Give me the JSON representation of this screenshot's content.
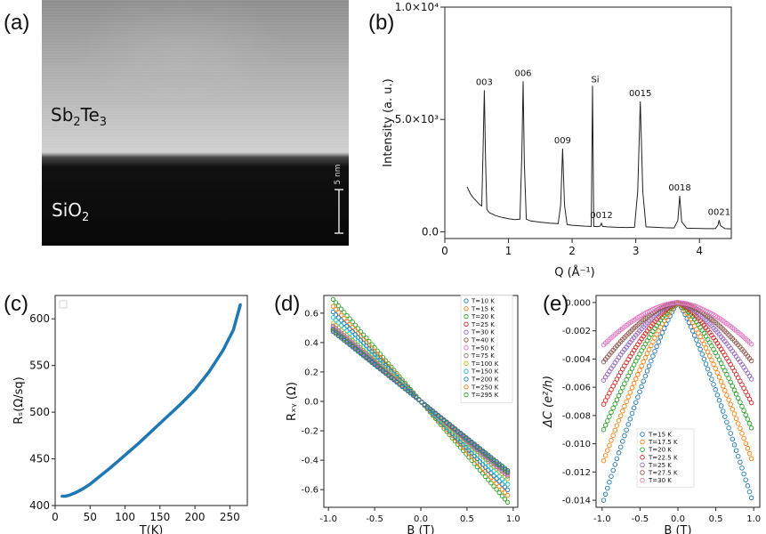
{
  "panels": {
    "a": {
      "label": "(a)",
      "layer_top": "Sb",
      "layer_top_sub1": "2",
      "layer_top_mid": "Te",
      "layer_top_sub2": "3",
      "layer_bottom": "SiO",
      "layer_bottom_sub": "2",
      "scale_bar": "5 nm"
    },
    "b": {
      "label": "(b)"
    },
    "c": {
      "label": "(c)"
    },
    "d": {
      "label": "(d)"
    },
    "e": {
      "label": "(e)"
    }
  },
  "chart_data": [
    {
      "id": "b",
      "type": "line",
      "title": "",
      "ylabel": "Intensity (a. u.)",
      "xlabel": "Q (Å⁻¹)",
      "xlim": [
        0,
        4.5
      ],
      "ylim": [
        -300,
        10000
      ],
      "xticks": [
        "0",
        "1",
        "2",
        "3",
        "4"
      ],
      "yticks": [
        "0.0",
        "5.0×10³",
        "1.0×10⁴"
      ],
      "peaks": [
        {
          "label": "003",
          "x": 0.62,
          "y": 6300
        },
        {
          "label": "006",
          "x": 1.23,
          "y": 6700
        },
        {
          "label": "009",
          "x": 1.85,
          "y": 3700
        },
        {
          "label": "0012",
          "x": 2.46,
          "y": 380
        },
        {
          "label": "Si",
          "x": 2.32,
          "y": 6500
        },
        {
          "label": "0015",
          "x": 3.07,
          "y": 5800
        },
        {
          "label": "0018",
          "x": 3.69,
          "y": 1600
        },
        {
          "label": "0021",
          "x": 4.31,
          "y": 520
        }
      ],
      "series": [
        {
          "name": "",
          "color": "#222222",
          "x": [
            0.35,
            0.4,
            0.45,
            0.5,
            0.55,
            0.58,
            0.6,
            0.62,
            0.64,
            0.66,
            0.7,
            0.8,
            0.9,
            1.0,
            1.1,
            1.18,
            1.21,
            1.23,
            1.25,
            1.28,
            1.35,
            1.5,
            1.65,
            1.78,
            1.82,
            1.85,
            1.88,
            1.92,
            2.0,
            2.1,
            2.2,
            2.3,
            2.32,
            2.34,
            2.4,
            2.44,
            2.46,
            2.48,
            2.55,
            2.7,
            2.85,
            2.98,
            3.03,
            3.07,
            3.11,
            3.16,
            3.3,
            3.45,
            3.6,
            3.66,
            3.69,
            3.72,
            3.8,
            3.95,
            4.1,
            4.25,
            4.29,
            4.31,
            4.33,
            4.4,
            4.5
          ],
          "y": [
            2000,
            1700,
            1500,
            1350,
            1200,
            1150,
            3500,
            6300,
            3200,
            1000,
            850,
            720,
            640,
            580,
            540,
            560,
            3500,
            6700,
            3000,
            560,
            480,
            430,
            380,
            360,
            1200,
            3700,
            1200,
            320,
            290,
            270,
            250,
            240,
            6500,
            240,
            230,
            250,
            380,
            240,
            220,
            200,
            190,
            200,
            1800,
            5800,
            1800,
            220,
            200,
            180,
            170,
            500,
            1600,
            450,
            160,
            150,
            140,
            140,
            300,
            520,
            280,
            140,
            130
          ]
        }
      ]
    },
    {
      "id": "c",
      "type": "line",
      "title": "",
      "xlabel": "T(K)",
      "ylabel": "Rₛ(Ω/sq)",
      "xlim": [
        0,
        275
      ],
      "ylim": [
        400,
        625
      ],
      "xticks": [
        "0",
        "50",
        "100",
        "150",
        "200",
        "250"
      ],
      "yticks": [
        "400",
        "450",
        "500",
        "550",
        "600"
      ],
      "series": [
        {
          "name": "",
          "color": "#1f77b4",
          "x": [
            10,
            15,
            20,
            30,
            40,
            50,
            60,
            80,
            100,
            120,
            140,
            160,
            180,
            200,
            220,
            240,
            255,
            265
          ],
          "y": [
            410,
            410,
            411,
            414,
            418,
            423,
            429,
            441,
            454,
            467,
            481,
            495,
            509,
            524,
            543,
            566,
            588,
            615
          ]
        }
      ]
    },
    {
      "id": "d",
      "type": "line",
      "title": "",
      "xlabel": "B (T)",
      "ylabel": "Rₓᵧ (Ω)",
      "xlim": [
        -1.05,
        1.05
      ],
      "ylim": [
        -0.72,
        0.72
      ],
      "xticks": [
        "-1.0",
        "-0.5",
        "0.0",
        "0.5",
        "1.0"
      ],
      "yticks": [
        "-0.6",
        "-0.4",
        "-0.2",
        "0.0",
        "0.2",
        "0.4",
        "0.6"
      ],
      "legend_position": "top-right",
      "series": [
        {
          "name": "T=10 K",
          "color": "#1f77b4",
          "slope": -0.5
        },
        {
          "name": "T=15 K",
          "color": "#ff7f0e",
          "slope": -0.5
        },
        {
          "name": "T=20 K",
          "color": "#2ca02c",
          "slope": -0.51
        },
        {
          "name": "T=25 K",
          "color": "#d62728",
          "slope": -0.51
        },
        {
          "name": "T=30 K",
          "color": "#9467bd",
          "slope": -0.52
        },
        {
          "name": "T=40 K",
          "color": "#8c564b",
          "slope": -0.52
        },
        {
          "name": "T=50 K",
          "color": "#e377c2",
          "slope": -0.53
        },
        {
          "name": "T=75 K",
          "color": "#7f7f7f",
          "slope": -0.54
        },
        {
          "name": "T=100 K",
          "color": "#bcbd22",
          "slope": -0.56
        },
        {
          "name": "T=150 K",
          "color": "#17becf",
          "slope": -0.6
        },
        {
          "name": "T=200 K",
          "color": "#1f77b4",
          "slope": -0.64
        },
        {
          "name": "T=250 K",
          "color": "#ff7f0e",
          "slope": -0.68
        },
        {
          "name": "T=295 K",
          "color": "#2ca02c",
          "slope": -0.73
        }
      ]
    },
    {
      "id": "e",
      "type": "scatter",
      "title": "",
      "xlabel": "B (T)",
      "ylabel": "ΔC (e²/h)",
      "xlim": [
        -1.08,
        1.08
      ],
      "ylim": [
        -0.0145,
        0.0005
      ],
      "xticks": [
        "-1.0",
        "-0.5",
        "0.0",
        "0.5",
        "1.0"
      ],
      "yticks": [
        "0.000",
        "-0.002",
        "-0.004",
        "-0.006",
        "-0.008",
        "-0.010",
        "-0.012",
        "-0.014"
      ],
      "legend_position": "bottom-center",
      "series": [
        {
          "name": "T=15 K",
          "color": "#1f77b4",
          "end_value": -0.014
        },
        {
          "name": "T=17.5 K",
          "color": "#ff7f0e",
          "end_value": -0.0112
        },
        {
          "name": "T=20 K",
          "color": "#2ca02c",
          "end_value": -0.009
        },
        {
          "name": "T=22.5 K",
          "color": "#d62728",
          "end_value": -0.0072
        },
        {
          "name": "T=25 K",
          "color": "#9467bd",
          "end_value": -0.0055
        },
        {
          "name": "T=27.5 K",
          "color": "#8c564b",
          "end_value": -0.0042
        },
        {
          "name": "T=30 K",
          "color": "#e377c2",
          "end_value": -0.003
        }
      ]
    }
  ]
}
